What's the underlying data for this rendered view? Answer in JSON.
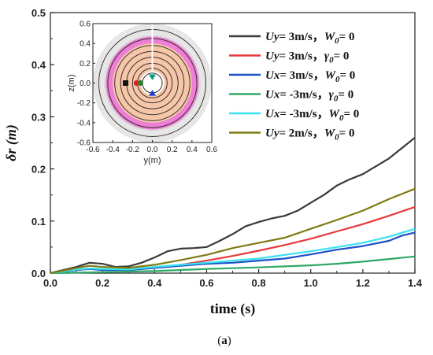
{
  "chart_data": [
    {
      "type": "line",
      "xlabel": "time (s)",
      "ylabel": "δr (m)",
      "xlim": [
        0,
        1.4
      ],
      "ylim": [
        0,
        0.5
      ],
      "xticks": [
        "0.0",
        "0.2",
        "0.4",
        "0.6",
        "0.8",
        "1.0",
        "1.2",
        "1.4"
      ],
      "yticks": [
        "0.0",
        "0.1",
        "0.2",
        "0.3",
        "0.4",
        "0.5"
      ],
      "grid": false,
      "legend_position": "top-right",
      "series": [
        {
          "name": "Uy= 3m/s，W0= 0",
          "legend_main": "Uy= 3m/s，",
          "legend_param": "W",
          "legend_sub": "0",
          "legend_tail": "= 0",
          "color": "#3a3a3a",
          "x": [
            0,
            0.1,
            0.15,
            0.2,
            0.25,
            0.3,
            0.35,
            0.4,
            0.45,
            0.5,
            0.55,
            0.6,
            0.65,
            0.7,
            0.75,
            0.8,
            0.85,
            0.9,
            0.95,
            1.0,
            1.05,
            1.1,
            1.15,
            1.2,
            1.25,
            1.3,
            1.35,
            1.4
          ],
          "y": [
            0,
            0.012,
            0.02,
            0.018,
            0.012,
            0.013,
            0.02,
            0.03,
            0.042,
            0.047,
            0.048,
            0.05,
            0.062,
            0.075,
            0.09,
            0.098,
            0.105,
            0.11,
            0.12,
            0.135,
            0.15,
            0.168,
            0.18,
            0.19,
            0.205,
            0.22,
            0.24,
            0.26
          ]
        },
        {
          "name": "Uy= 3m/s，γ0= 0",
          "legend_main": "Uy= 3m/s，",
          "legend_param": "γ",
          "legend_sub": "0",
          "legend_tail": "= 0",
          "color": "#e5393b",
          "x": [
            0,
            0.1,
            0.15,
            0.2,
            0.3,
            0.4,
            0.5,
            0.6,
            0.7,
            0.8,
            0.9,
            1.0,
            1.1,
            1.2,
            1.3,
            1.4
          ],
          "y": [
            0,
            0.006,
            0.008,
            0.007,
            0.006,
            0.01,
            0.016,
            0.024,
            0.033,
            0.043,
            0.054,
            0.066,
            0.08,
            0.094,
            0.11,
            0.127
          ]
        },
        {
          "name": "Ux= 3m/s，W0= 0",
          "legend_main": "Ux= 3m/s，",
          "legend_param": "W",
          "legend_sub": "0",
          "legend_tail": "= 0",
          "color": "#1d4fc7",
          "x": [
            0,
            0.1,
            0.15,
            0.2,
            0.3,
            0.4,
            0.5,
            0.6,
            0.7,
            0.8,
            0.9,
            1.0,
            1.1,
            1.2,
            1.3,
            1.35,
            1.4
          ],
          "y": [
            0,
            0.006,
            0.008,
            0.006,
            0.006,
            0.01,
            0.014,
            0.018,
            0.02,
            0.024,
            0.028,
            0.036,
            0.045,
            0.052,
            0.062,
            0.072,
            0.078
          ]
        },
        {
          "name": "Ux= -3m/s，γ0= 0",
          "legend_main": "Ux= -3m/s，",
          "legend_param": "γ",
          "legend_sub": "0",
          "legend_tail": "= 0",
          "color": "#2ea866",
          "x": [
            0,
            0.2,
            0.4,
            0.6,
            0.8,
            1.0,
            1.1,
            1.2,
            1.3,
            1.4
          ],
          "y": [
            0,
            0.002,
            0.004,
            0.008,
            0.011,
            0.015,
            0.018,
            0.022,
            0.027,
            0.032
          ]
        },
        {
          "name": "Ux= -3m/s，W0= 0",
          "legend_main": "Ux= -3m/s，",
          "legend_param": "W",
          "legend_sub": "0",
          "legend_tail": "= 0",
          "color": "#38e3f0",
          "x": [
            0,
            0.1,
            0.15,
            0.2,
            0.3,
            0.4,
            0.5,
            0.6,
            0.7,
            0.8,
            0.9,
            1.0,
            1.1,
            1.2,
            1.3,
            1.4
          ],
          "y": [
            0,
            0.007,
            0.009,
            0.008,
            0.007,
            0.012,
            0.016,
            0.02,
            0.024,
            0.028,
            0.035,
            0.042,
            0.05,
            0.058,
            0.07,
            0.085
          ]
        },
        {
          "name": "Uy= 2m/s，W0= 0",
          "legend_main": "Uy= 2m/s，",
          "legend_param": "W",
          "legend_sub": "0",
          "legend_tail": "= 0",
          "color": "#7f7a12",
          "x": [
            0,
            0.1,
            0.15,
            0.2,
            0.3,
            0.4,
            0.5,
            0.6,
            0.7,
            0.8,
            0.9,
            1.0,
            1.1,
            1.2,
            1.3,
            1.4
          ],
          "y": [
            0,
            0.01,
            0.014,
            0.012,
            0.01,
            0.016,
            0.025,
            0.035,
            0.048,
            0.058,
            0.068,
            0.085,
            0.102,
            0.12,
            0.142,
            0.162
          ]
        }
      ]
    },
    {
      "type": "scatter",
      "xlabel": "y(m)",
      "ylabel": "z(m)",
      "xlim": [
        -0.6,
        0.6
      ],
      "ylim": [
        -0.6,
        0.6
      ],
      "xticks": [
        "-0.6",
        "-0.4",
        "-0.2",
        "0.0",
        "0.2",
        "0.4",
        "0.6"
      ],
      "yticks": [
        "-0.6",
        "-0.4",
        "-0.2",
        "0.0",
        "0.2",
        "0.4",
        "0.6"
      ],
      "ring_colors": {
        "outer": "#dcdcdc",
        "band": "#ee7fd6",
        "inner": "#f5c7a8",
        "core": "#ffffff"
      },
      "rings_r": [
        0.54,
        0.45,
        0.38,
        0.32,
        0.26,
        0.2,
        0.15,
        0.1
      ],
      "points": [
        {
          "x": -0.27,
          "y": 0.0,
          "shape": "square",
          "color": "#111111"
        },
        {
          "x": -0.16,
          "y": 0.0,
          "shape": "circle",
          "color": "#e02020"
        },
        {
          "x": -0.12,
          "y": 0.0,
          "shape": "circle",
          "color": "#2e7d32"
        },
        {
          "x": 0.0,
          "y": 0.06,
          "shape": "triangle-down",
          "color": "#00a080"
        },
        {
          "x": 0.0,
          "y": -0.1,
          "shape": "triangle-up",
          "color": "#1a3fd6"
        }
      ]
    }
  ],
  "caption": {
    "open": "(",
    "letter": "a",
    "close": ")"
  }
}
